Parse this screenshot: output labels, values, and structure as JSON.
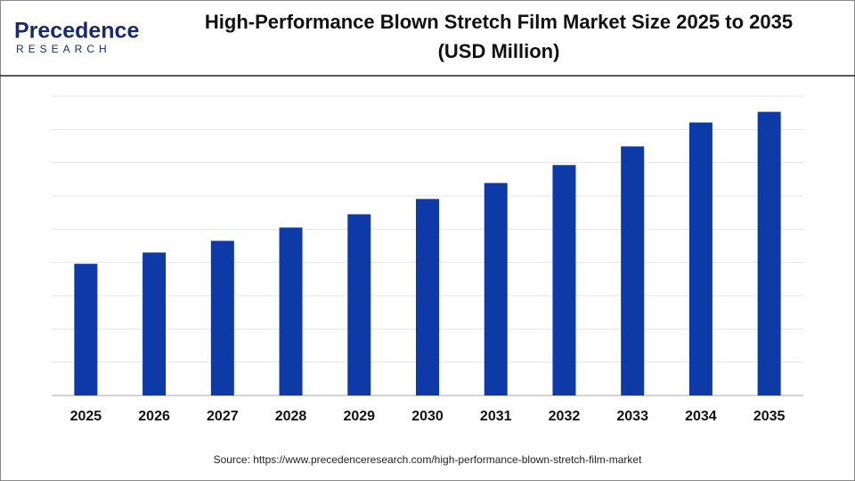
{
  "logo": {
    "name": "Precedence",
    "tagline": "RESEARCH"
  },
  "chart_data": {
    "type": "bar",
    "title": "High-Performance Blown Stretch Film Market Size 2025 to 2035",
    "subtitle": "(USD Million)",
    "categories": [
      "2025",
      "2026",
      "2027",
      "2028",
      "2029",
      "2030",
      "2031",
      "2032",
      "2033",
      "2034",
      "2035"
    ],
    "values": [
      3.96,
      4.3,
      4.65,
      5.05,
      5.45,
      5.91,
      6.39,
      6.93,
      7.49,
      8.21,
      8.53
    ],
    "color": "#0e3aa8",
    "ylim": [
      0,
      9
    ],
    "gridlines": [
      0,
      1,
      2,
      3,
      4,
      5,
      6,
      7,
      8,
      9
    ],
    "grid": true,
    "source": "Source: https://www.precedenceresearch.com/high-performance-blown-stretch-film-market"
  }
}
